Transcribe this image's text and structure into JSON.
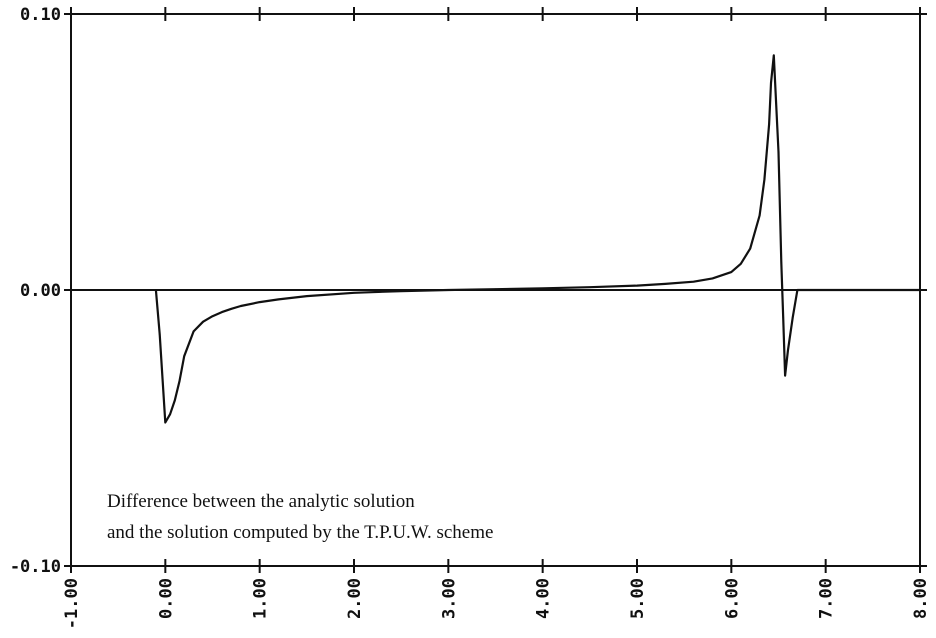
{
  "chart_data": {
    "type": "line",
    "title": "",
    "xlabel": "",
    "ylabel": "",
    "xlim": [
      -1.0,
      8.0
    ],
    "ylim": [
      -0.1,
      0.1
    ],
    "grid": false,
    "x_ticks": [
      -1,
      0,
      1,
      2,
      3,
      4,
      5,
      6,
      7,
      8
    ],
    "x_tick_labels": [
      "-1.00",
      "0.00",
      "1.00",
      "2.00",
      "3.00",
      "4.00",
      "5.00",
      "6.00",
      "7.00",
      "8.00"
    ],
    "y_ticks": [
      -0.1,
      0.0,
      0.1
    ],
    "y_tick_labels": [
      "-0.10",
      "0.00",
      "0.10"
    ],
    "zero_line": true,
    "annotation": [
      "Difference between the analytic solution",
      "and the solution computed by the T.P.U.W. scheme"
    ],
    "series": [
      {
        "color": "#111111",
        "x": [
          -0.1,
          -0.06,
          -0.03,
          0.0,
          0.05,
          0.1,
          0.15,
          0.2,
          0.3,
          0.4,
          0.5,
          0.6,
          0.7,
          0.8,
          1.0,
          1.2,
          1.5,
          2.0,
          2.5,
          3.0,
          3.5,
          4.0,
          4.5,
          5.0,
          5.3,
          5.6,
          5.8,
          6.0,
          6.1,
          6.2,
          6.3,
          6.35,
          6.4,
          6.42,
          6.45,
          6.5,
          6.53,
          6.55,
          6.57,
          6.6,
          6.65,
          6.7,
          8.0
        ],
        "y": [
          0.0,
          -0.016,
          -0.032,
          -0.048,
          -0.045,
          -0.04,
          -0.033,
          -0.024,
          -0.015,
          -0.0115,
          -0.0095,
          -0.008,
          -0.0068,
          -0.0058,
          -0.0044,
          -0.0034,
          -0.0022,
          -0.001,
          -0.0004,
          0.0,
          0.0003,
          0.0006,
          0.001,
          0.0016,
          0.0022,
          0.003,
          0.0042,
          0.0065,
          0.0095,
          0.015,
          0.027,
          0.04,
          0.06,
          0.075,
          0.085,
          0.05,
          0.01,
          -0.01,
          -0.031,
          -0.022,
          -0.01,
          0.0,
          0.0
        ]
      }
    ]
  }
}
